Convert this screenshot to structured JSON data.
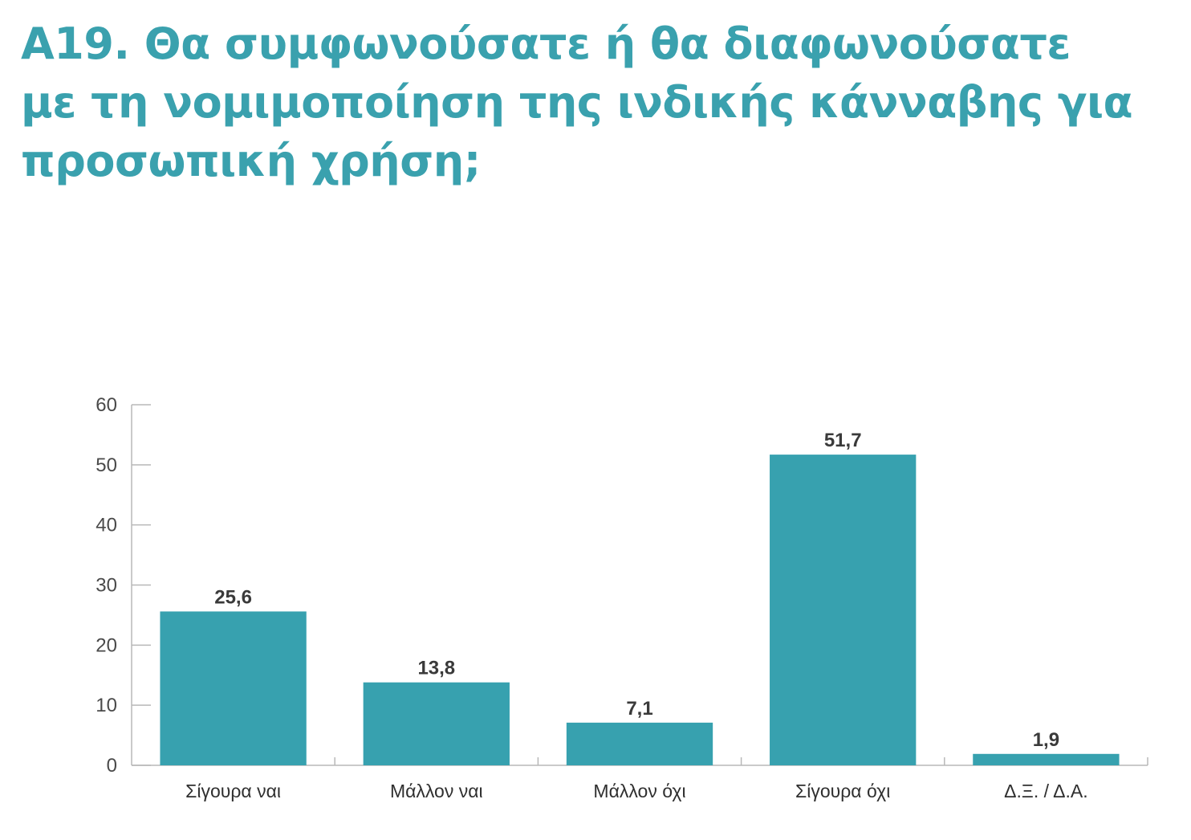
{
  "title_lines": [
    "Α19. Θα συμφωνούσατε ή θα διαφωνούσατε",
    "με τη νομιμοποίηση της ινδικής κάνναβης για",
    "προσωπική χρήση;"
  ],
  "colors": {
    "title": "#3aa1ae",
    "bar": "#37a1af",
    "axis": "#b8b8b8",
    "text": "#3a3a3a"
  },
  "chart_data": {
    "type": "bar",
    "categories": [
      "Σίγουρα ναι",
      "Μάλλον ναι",
      "Μάλλον όχι",
      "Σίγουρα όχι",
      "Δ.Ξ. / Δ.Α."
    ],
    "values": [
      25.6,
      13.8,
      7.1,
      51.7,
      1.9
    ],
    "value_labels": [
      "25,6",
      "13,8",
      "7,1",
      "51,7",
      "1,9"
    ],
    "title": "Α19. Θα συμφωνούσατε ή θα διαφωνούσατε με τη νομιμοποίηση της ινδικής κάνναβης για προσωπική χρήση;",
    "xlabel": "",
    "ylabel": "",
    "ylim": [
      0,
      60
    ],
    "yticks": [
      0,
      10,
      20,
      30,
      40,
      50,
      60
    ],
    "grid": false,
    "legend": "none"
  }
}
